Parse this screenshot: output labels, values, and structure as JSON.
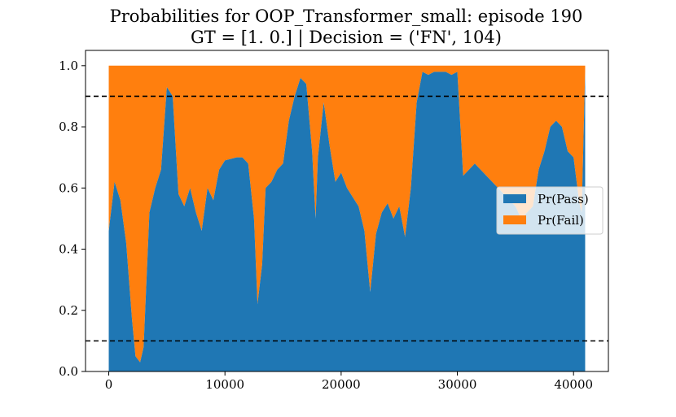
{
  "chart_data": {
    "type": "area",
    "title_line1": "Probabilities for OOP_Transformer_small: episode 190",
    "title_line2": "GT = [1. 0.] | Decision = ('FN', 104)",
    "xlabel": "",
    "ylabel": "",
    "xlim": [
      -2000,
      43000
    ],
    "ylim": [
      0.0,
      1.05
    ],
    "xticks": [
      0,
      10000,
      20000,
      30000,
      40000
    ],
    "xtick_labels": [
      "0",
      "10000",
      "20000",
      "30000",
      "40000"
    ],
    "yticks": [
      0.0,
      0.2,
      0.4,
      0.6,
      0.8,
      1.0
    ],
    "ytick_labels": [
      "0.0",
      "0.2",
      "0.4",
      "0.6",
      "0.8",
      "1.0"
    ],
    "thresholds": [
      0.9,
      0.1
    ],
    "grid": false,
    "legend_position": "center-right",
    "series": [
      {
        "name": "Pr(Pass)",
        "color": "#1f77b4",
        "points": [
          [
            0,
            0.46
          ],
          [
            500,
            0.62
          ],
          [
            1000,
            0.56
          ],
          [
            1500,
            0.42
          ],
          [
            2000,
            0.17
          ],
          [
            2300,
            0.05
          ],
          [
            2700,
            0.03
          ],
          [
            3000,
            0.08
          ],
          [
            3500,
            0.52
          ],
          [
            4000,
            0.6
          ],
          [
            4500,
            0.66
          ],
          [
            5000,
            0.93
          ],
          [
            5500,
            0.9
          ],
          [
            6000,
            0.58
          ],
          [
            6500,
            0.54
          ],
          [
            7000,
            0.6
          ],
          [
            7500,
            0.52
          ],
          [
            8000,
            0.46
          ],
          [
            8500,
            0.6
          ],
          [
            9000,
            0.56
          ],
          [
            9500,
            0.66
          ],
          [
            10000,
            0.69
          ],
          [
            11000,
            0.7
          ],
          [
            11500,
            0.7
          ],
          [
            12000,
            0.68
          ],
          [
            12500,
            0.5
          ],
          [
            12800,
            0.22
          ],
          [
            13200,
            0.35
          ],
          [
            13500,
            0.6
          ],
          [
            14000,
            0.62
          ],
          [
            14500,
            0.66
          ],
          [
            15000,
            0.68
          ],
          [
            15500,
            0.82
          ],
          [
            16000,
            0.9
          ],
          [
            16500,
            0.96
          ],
          [
            17000,
            0.94
          ],
          [
            17500,
            0.72
          ],
          [
            17800,
            0.5
          ],
          [
            18000,
            0.7
          ],
          [
            18500,
            0.88
          ],
          [
            19000,
            0.74
          ],
          [
            19500,
            0.62
          ],
          [
            20000,
            0.65
          ],
          [
            20500,
            0.6
          ],
          [
            21000,
            0.57
          ],
          [
            21500,
            0.54
          ],
          [
            22000,
            0.46
          ],
          [
            22500,
            0.26
          ],
          [
            23000,
            0.45
          ],
          [
            23500,
            0.52
          ],
          [
            24000,
            0.55
          ],
          [
            24500,
            0.5
          ],
          [
            25000,
            0.54
          ],
          [
            25500,
            0.44
          ],
          [
            26000,
            0.6
          ],
          [
            26500,
            0.88
          ],
          [
            27000,
            0.98
          ],
          [
            27500,
            0.97
          ],
          [
            28000,
            0.98
          ],
          [
            28500,
            0.98
          ],
          [
            29000,
            0.98
          ],
          [
            29500,
            0.97
          ],
          [
            30000,
            0.98
          ],
          [
            30500,
            0.64
          ],
          [
            31000,
            0.66
          ],
          [
            31500,
            0.68
          ],
          [
            32000,
            0.66
          ],
          [
            32500,
            0.64
          ],
          [
            33000,
            0.62
          ],
          [
            33500,
            0.6
          ],
          [
            34000,
            0.58
          ],
          [
            34500,
            0.56
          ],
          [
            35000,
            0.54
          ],
          [
            35500,
            0.5
          ],
          [
            36000,
            0.52
          ],
          [
            36500,
            0.54
          ],
          [
            37000,
            0.66
          ],
          [
            37500,
            0.72
          ],
          [
            38000,
            0.8
          ],
          [
            38500,
            0.82
          ],
          [
            39000,
            0.8
          ],
          [
            39500,
            0.72
          ],
          [
            40000,
            0.7
          ],
          [
            40500,
            0.55
          ],
          [
            40700,
            0.52
          ],
          [
            41000,
            0.98
          ]
        ]
      },
      {
        "name": "Pr(Fail)",
        "color": "#ff7f0e",
        "stacked_total": 1.0
      }
    ]
  }
}
